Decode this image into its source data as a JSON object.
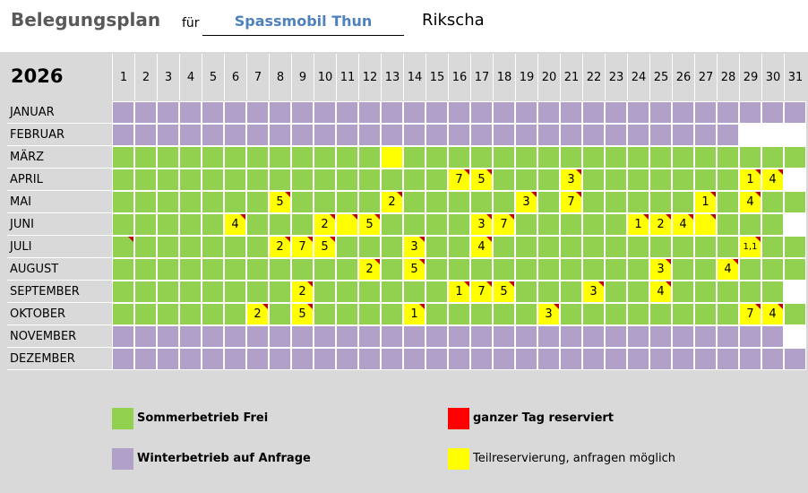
{
  "header": {
    "title": "Belegungsplan",
    "for_label": "für",
    "client": "Spassmobil Thun",
    "vehicle": "Rikscha"
  },
  "plan": {
    "year": "2026",
    "days": [
      1,
      2,
      3,
      4,
      5,
      6,
      7,
      8,
      9,
      10,
      11,
      12,
      13,
      14,
      15,
      16,
      17,
      18,
      19,
      20,
      21,
      22,
      23,
      24,
      25,
      26,
      27,
      28,
      29,
      30,
      31
    ],
    "colors": {
      "w": "#b1a0c7",
      "g": "#92d050",
      "y": "#ffff00",
      "r": "#ff0000"
    },
    "months": [
      {
        "label": "JANUAR",
        "cells": [
          "w",
          "w",
          "w",
          "w",
          "w",
          "w",
          "w",
          "w",
          "w",
          "w",
          "w",
          "w",
          "w",
          "w",
          "w",
          "w",
          "w",
          "w",
          "w",
          "w",
          "w",
          "w",
          "w",
          "w",
          "w",
          "w",
          "w",
          "w",
          "w",
          "w",
          "w"
        ]
      },
      {
        "label": "FEBRUAR",
        "cells": [
          "w",
          "w",
          "w",
          "w",
          "w",
          "w",
          "w",
          "w",
          "w",
          "w",
          "w",
          "w",
          "w",
          "w",
          "w",
          "w",
          "w",
          "w",
          "w",
          "w",
          "w",
          "w",
          "w",
          "w",
          "w",
          "w",
          "w",
          "w",
          null,
          null,
          null
        ]
      },
      {
        "label": "MÄRZ",
        "cells": [
          "g",
          "g",
          "g",
          "g",
          "g",
          "g",
          "g",
          "g",
          "g",
          "g",
          "g",
          "g",
          {
            "fill": "y"
          },
          "g",
          "g",
          "g",
          "g",
          "g",
          "g",
          "g",
          "g",
          "g",
          "g",
          "g",
          "g",
          "g",
          "g",
          "g",
          "g",
          "g",
          "g"
        ]
      },
      {
        "label": "APRIL",
        "cells": [
          "g",
          "g",
          "g",
          "g",
          "g",
          "g",
          "g",
          "g",
          "g",
          "g",
          "g",
          "g",
          "g",
          "g",
          "g",
          {
            "fill": "y",
            "text": "7",
            "note": true
          },
          {
            "fill": "y",
            "text": "5",
            "note": true
          },
          "g",
          "g",
          "g",
          {
            "fill": "y",
            "text": "3",
            "note": true
          },
          "g",
          "g",
          "g",
          "g",
          "g",
          "g",
          "g",
          {
            "fill": "y",
            "text": "1",
            "note": true
          },
          {
            "fill": "y",
            "text": "4",
            "note": true
          },
          null
        ]
      },
      {
        "label": "MAI",
        "cells": [
          "g",
          "g",
          "g",
          "g",
          "g",
          "g",
          "g",
          {
            "fill": "y",
            "text": "5",
            "note": true
          },
          "g",
          "g",
          "g",
          "g",
          {
            "fill": "y",
            "text": "2",
            "note": true
          },
          "g",
          "g",
          "g",
          "g",
          "g",
          {
            "fill": "y",
            "text": "3",
            "note": true
          },
          "g",
          {
            "fill": "y",
            "text": "7",
            "note": true
          },
          "g",
          "g",
          "g",
          "g",
          "g",
          {
            "fill": "y",
            "text": "1",
            "note": true
          },
          "g",
          {
            "fill": "y",
            "text": "4",
            "note": true
          },
          "g",
          "g"
        ]
      },
      {
        "label": "JUNI",
        "cells": [
          "g",
          "g",
          "g",
          "g",
          "g",
          {
            "fill": "y",
            "text": "4",
            "note": true
          },
          "g",
          "g",
          "g",
          {
            "fill": "y",
            "text": "2",
            "note": true
          },
          {
            "fill": "y",
            "note": true
          },
          {
            "fill": "y",
            "text": "5",
            "note": true
          },
          "g",
          "g",
          "g",
          "g",
          {
            "fill": "y",
            "text": "3",
            "note": true
          },
          {
            "fill": "y",
            "text": "7",
            "note": true
          },
          "g",
          "g",
          "g",
          "g",
          "g",
          {
            "fill": "y",
            "text": "1",
            "note": true
          },
          {
            "fill": "y",
            "text": "2",
            "note": true
          },
          {
            "fill": "y",
            "text": "4",
            "note": true
          },
          {
            "fill": "y",
            "note": true
          },
          "g",
          "g",
          "g",
          null
        ]
      },
      {
        "label": "JULI",
        "cells": [
          {
            "fill": "g",
            "note": true
          },
          "g",
          "g",
          "g",
          "g",
          "g",
          "g",
          {
            "fill": "y",
            "text": "2",
            "note": true
          },
          {
            "fill": "y",
            "text": "7",
            "note": true
          },
          {
            "fill": "y",
            "text": "5",
            "note": true
          },
          "g",
          "g",
          "g",
          {
            "fill": "y",
            "text": "3",
            "note": true
          },
          "g",
          "g",
          {
            "fill": "y",
            "text": "4",
            "note": true
          },
          "g",
          "g",
          "g",
          "g",
          "g",
          "g",
          "g",
          "g",
          "g",
          "g",
          "g",
          {
            "fill": "y",
            "text": "1,1",
            "note": true
          },
          "g",
          "g"
        ]
      },
      {
        "label": "AUGUST",
        "cells": [
          "g",
          "g",
          "g",
          "g",
          "g",
          "g",
          "g",
          "g",
          "g",
          "g",
          "g",
          {
            "fill": "y",
            "text": "2",
            "note": true
          },
          "g",
          {
            "fill": "y",
            "text": "5",
            "note": true
          },
          "g",
          "g",
          "g",
          "g",
          "g",
          "g",
          "g",
          "g",
          "g",
          "g",
          {
            "fill": "y",
            "text": "3",
            "note": true
          },
          "g",
          "g",
          {
            "fill": "y",
            "text": "4",
            "note": true
          },
          "g",
          "g",
          "g"
        ]
      },
      {
        "label": "SEPTEMBER",
        "cells": [
          "g",
          "g",
          "g",
          "g",
          "g",
          "g",
          "g",
          "g",
          {
            "fill": "y",
            "text": "2",
            "note": true
          },
          "g",
          "g",
          "g",
          "g",
          "g",
          "g",
          {
            "fill": "y",
            "text": "1",
            "note": true
          },
          {
            "fill": "y",
            "text": "7",
            "note": true
          },
          {
            "fill": "y",
            "text": "5",
            "note": true
          },
          "g",
          "g",
          "g",
          {
            "fill": "y",
            "text": "3",
            "note": true
          },
          "g",
          "g",
          {
            "fill": "y",
            "text": "4",
            "note": true
          },
          "g",
          "g",
          "g",
          "g",
          "g",
          null
        ]
      },
      {
        "label": "OKTOBER",
        "cells": [
          "g",
          "g",
          "g",
          "g",
          "g",
          "g",
          {
            "fill": "y",
            "text": "2",
            "note": true
          },
          "g",
          {
            "fill": "y",
            "text": "5",
            "note": true
          },
          "g",
          "g",
          "g",
          "g",
          {
            "fill": "y",
            "text": "1",
            "note": true
          },
          "g",
          "g",
          "g",
          "g",
          "g",
          {
            "fill": "y",
            "text": "3",
            "note": true
          },
          "g",
          "g",
          "g",
          "g",
          "g",
          "g",
          "g",
          "g",
          {
            "fill": "y",
            "text": "7",
            "note": true
          },
          {
            "fill": "y",
            "text": "4",
            "note": true
          },
          "g"
        ]
      },
      {
        "label": "NOVEMBER",
        "cells": [
          "w",
          "w",
          "w",
          "w",
          "w",
          "w",
          "w",
          "w",
          "w",
          "w",
          "w",
          "w",
          "w",
          "w",
          "w",
          "w",
          "w",
          "w",
          "w",
          "w",
          "w",
          "w",
          "w",
          "w",
          "w",
          "w",
          "w",
          "w",
          "w",
          "w",
          null
        ]
      },
      {
        "label": "DEZEMBER",
        "cells": [
          "w",
          "w",
          "w",
          "w",
          "w",
          "w",
          "w",
          "w",
          "w",
          "w",
          "w",
          "w",
          "w",
          "w",
          "w",
          "w",
          "w",
          "w",
          "w",
          "w",
          "w",
          "w",
          "w",
          "w",
          "w",
          "w",
          "w",
          "w",
          "w",
          "w",
          "w"
        ]
      }
    ]
  },
  "legend": [
    {
      "label": "Sommerbetrieb Frei",
      "color": "#92d050"
    },
    {
      "label": "ganzer Tag reserviert",
      "color": "#ff0000"
    },
    {
      "label": "Winterbetrieb auf Anfrage",
      "color": "#b1a0c7"
    },
    {
      "label": "Teilreservierung, anfragen möglich",
      "color": "#ffff00"
    }
  ]
}
